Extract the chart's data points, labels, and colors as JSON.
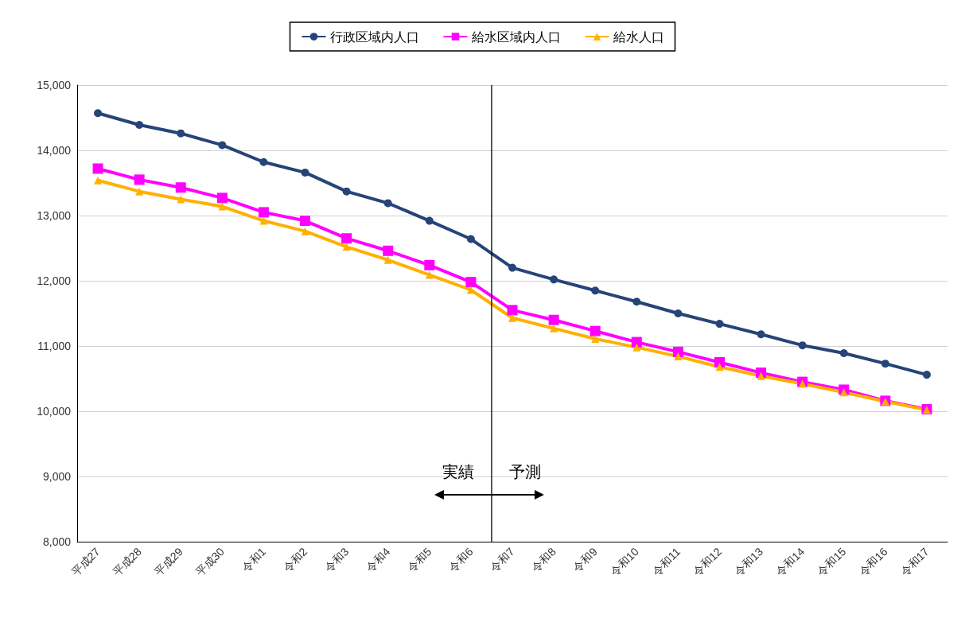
{
  "chart_data": {
    "type": "line",
    "categories": [
      "平成27",
      "平成28",
      "平成29",
      "平成30",
      "令和1",
      "令和2",
      "令和3",
      "令和4",
      "令和5",
      "令和6",
      "令和7",
      "令和8",
      "令和9",
      "令和10",
      "令和11",
      "令和12",
      "令和13",
      "令和14",
      "令和15",
      "令和16",
      "令和17"
    ],
    "series": [
      {
        "name": "行政区域内人口",
        "color": "#264478",
        "marker": "circle",
        "values": [
          14570,
          14390,
          14260,
          14080,
          13820,
          13660,
          13370,
          13190,
          12920,
          12640,
          12200,
          12020,
          11850,
          11680,
          11500,
          11340,
          11180,
          11010,
          10890,
          10730,
          10560
        ]
      },
      {
        "name": "給水区域内人口",
        "color": "#ff00ff",
        "marker": "square",
        "values": [
          13720,
          13550,
          13430,
          13270,
          13050,
          12920,
          12650,
          12460,
          12240,
          11980,
          11550,
          11400,
          11230,
          11060,
          10910,
          10750,
          10590,
          10450,
          10330,
          10160,
          10030
        ]
      },
      {
        "name": "給水人口",
        "color": "#ffb000",
        "marker": "triangle",
        "values": [
          13540,
          13370,
          13250,
          13140,
          12920,
          12760,
          12520,
          12320,
          12090,
          11860,
          11430,
          11270,
          11110,
          10980,
          10840,
          10680,
          10540,
          10420,
          10290,
          10150,
          10020
        ]
      }
    ],
    "ylim": [
      8000,
      15000
    ],
    "yticks": [
      {
        "value": 8000,
        "label": "8,000"
      },
      {
        "value": 9000,
        "label": "9,000"
      },
      {
        "value": 10000,
        "label": "10,000"
      },
      {
        "value": 11000,
        "label": "11,000"
      },
      {
        "value": 12000,
        "label": "12,000"
      },
      {
        "value": 13000,
        "label": "13,000"
      },
      {
        "value": 14000,
        "label": "14,000"
      },
      {
        "value": 15000,
        "label": "15,000"
      }
    ],
    "grid": "y",
    "legend": "top",
    "ref_lines": [
      {
        "axis": "x",
        "value": "令和7",
        "color": "#000000"
      }
    ],
    "annotations": [
      "実績",
      "予測"
    ]
  }
}
